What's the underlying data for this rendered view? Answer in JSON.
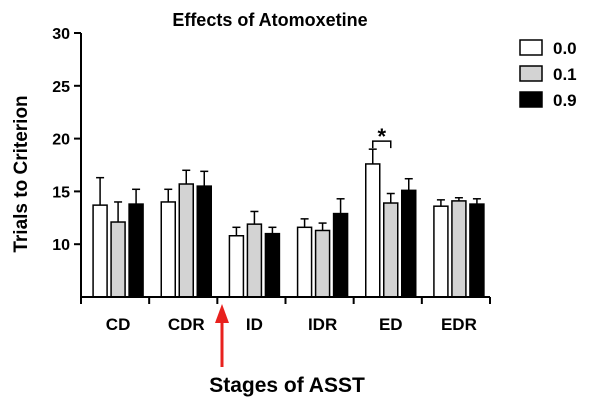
{
  "chart_data": {
    "type": "bar",
    "title": "Effects of Atomoxetine",
    "xlabel": "Stages of ASST",
    "ylabel": "Trials to Criterion",
    "categories": [
      "CD",
      "CDR",
      "ID",
      "IDR",
      "ED",
      "EDR"
    ],
    "ylim": [
      5,
      30
    ],
    "yticks": [
      "10",
      "15",
      "20",
      "25",
      "30"
    ],
    "series": [
      {
        "name": "0.0",
        "color": "#ffffff",
        "values": [
          13.7,
          14.0,
          10.8,
          11.6,
          17.6,
          13.6
        ],
        "errors": [
          2.6,
          1.2,
          0.8,
          0.8,
          1.4,
          0.6
        ]
      },
      {
        "name": "0.1",
        "color": "#d3d3d3",
        "values": [
          12.1,
          15.7,
          11.9,
          11.3,
          13.9,
          14.1
        ],
        "errors": [
          1.9,
          1.3,
          1.2,
          0.7,
          0.9,
          0.3
        ]
      },
      {
        "name": "0.9",
        "color": "#000000",
        "values": [
          13.8,
          15.5,
          11.0,
          12.9,
          15.1,
          13.8
        ],
        "errors": [
          1.4,
          1.4,
          0.6,
          1.4,
          1.1,
          0.5
        ]
      }
    ],
    "annotations": [
      {
        "text": "*",
        "category": "ED",
        "between": [
          "0.0",
          "0.1"
        ]
      }
    ],
    "marker": {
      "label": "red-arrow",
      "after_category": "CDR",
      "color": "#e8211e"
    },
    "legend_position": "top-right",
    "grid": false
  }
}
